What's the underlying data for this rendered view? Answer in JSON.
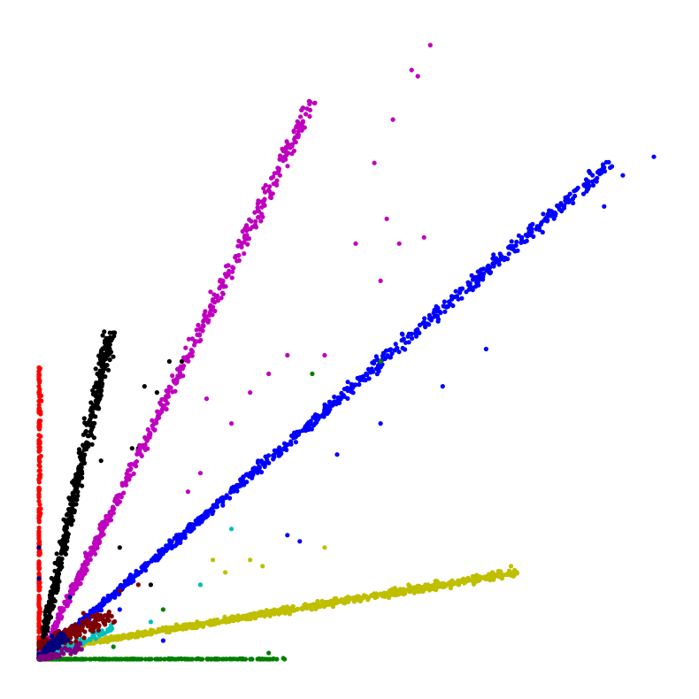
{
  "chart_data": {
    "type": "scatter",
    "title": "",
    "xlabel": "",
    "ylabel": "",
    "axes_visible": false,
    "grid": false,
    "legend": "none",
    "xlim": [
      0,
      1
    ],
    "ylim": [
      0,
      1
    ],
    "series": [
      {
        "color": "#ff0000",
        "trend": [
          [
            0.0,
            0.0
          ],
          [
            0.0,
            0.47
          ]
        ],
        "scatter": 0.004,
        "count": 220,
        "outliers": [
          [
            0.0,
            0.47
          ],
          [
            0.0,
            0.44
          ],
          [
            0.0,
            0.43
          ],
          [
            0.02,
            0.09
          ],
          [
            0.03,
            0.14
          ]
        ]
      },
      {
        "color": "#000000",
        "trend": [
          [
            0.0,
            0.0
          ],
          [
            0.115,
            0.53
          ]
        ],
        "scatter": 0.012,
        "count": 520,
        "outliers": [
          [
            0.23,
            0.48
          ],
          [
            0.21,
            0.48
          ],
          [
            0.17,
            0.44
          ],
          [
            0.19,
            0.43
          ],
          [
            0.15,
            0.34
          ],
          [
            0.13,
            0.18
          ],
          [
            0.18,
            0.12
          ],
          [
            0.16,
            0.34
          ],
          [
            0.1,
            0.32
          ]
        ]
      },
      {
        "color": "#bf00bf",
        "trend": [
          [
            0.0,
            0.0
          ],
          [
            0.44,
            0.9
          ]
        ],
        "scatter": 0.012,
        "count": 620,
        "outliers": [
          [
            0.63,
            0.99
          ],
          [
            0.6,
            0.95
          ],
          [
            0.61,
            0.94
          ],
          [
            0.57,
            0.87
          ],
          [
            0.54,
            0.8
          ],
          [
            0.56,
            0.71
          ],
          [
            0.62,
            0.68
          ],
          [
            0.51,
            0.67
          ],
          [
            0.55,
            0.61
          ],
          [
            0.46,
            0.49
          ],
          [
            0.37,
            0.46
          ],
          [
            0.34,
            0.43
          ],
          [
            0.31,
            0.38
          ],
          [
            0.26,
            0.3
          ],
          [
            0.24,
            0.27
          ],
          [
            0.27,
            0.42
          ],
          [
            0.4,
            0.49
          ],
          [
            0.58,
            0.67
          ]
        ]
      },
      {
        "color": "#0000ff",
        "trend": [
          [
            0.0,
            0.0
          ],
          [
            0.92,
            0.8
          ]
        ],
        "scatter": 0.012,
        "count": 920,
        "outliers": [
          [
            0.99,
            0.81
          ],
          [
            0.94,
            0.78
          ],
          [
            0.91,
            0.73
          ],
          [
            0.72,
            0.5
          ],
          [
            0.65,
            0.44
          ],
          [
            0.55,
            0.38
          ],
          [
            0.48,
            0.33
          ],
          [
            0.4,
            0.2
          ],
          [
            0.42,
            0.19
          ],
          [
            0.13,
            0.08
          ],
          [
            0.2,
            0.03
          ]
        ]
      },
      {
        "color": "#bfbf00",
        "trend": [
          [
            0.04,
            0.02
          ],
          [
            0.77,
            0.14
          ]
        ],
        "scatter": 0.008,
        "count": 900,
        "outliers": [
          [
            0.76,
            0.15
          ],
          [
            0.73,
            0.14
          ],
          [
            0.46,
            0.18
          ],
          [
            0.34,
            0.16
          ],
          [
            0.36,
            0.15
          ],
          [
            0.28,
            0.16
          ],
          [
            0.26,
            0.12
          ],
          [
            0.3,
            0.14
          ]
        ]
      },
      {
        "color": "#007f00",
        "trend": [
          [
            0.0,
            0.0
          ],
          [
            0.4,
            0.0
          ]
        ],
        "scatter": 0.0015,
        "count": 260,
        "outliers": [
          [
            0.44,
            0.46
          ],
          [
            0.55,
            0.48
          ],
          [
            0.37,
            0.01
          ],
          [
            0.12,
            0.02
          ],
          [
            0.2,
            0.08
          ]
        ]
      },
      {
        "color": "#00bfbf",
        "trend": [
          [
            0.01,
            0.005
          ],
          [
            0.12,
            0.05
          ]
        ],
        "scatter": 0.01,
        "count": 90,
        "outliers": [
          [
            0.31,
            0.21
          ],
          [
            0.26,
            0.12
          ],
          [
            0.18,
            0.06
          ]
        ]
      },
      {
        "color": "#7f0000",
        "trend": [
          [
            0.0,
            0.02
          ],
          [
            0.12,
            0.07
          ]
        ],
        "scatter": 0.02,
        "count": 170,
        "outliers": [
          [
            0.13,
            0.11
          ],
          [
            0.16,
            0.12
          ]
        ]
      },
      {
        "color": "#00007f",
        "trend": [
          [
            0.0,
            0.0
          ],
          [
            0.04,
            0.04
          ]
        ],
        "scatter": 0.015,
        "count": 90,
        "outliers": [
          [
            0.05,
            0.1
          ],
          [
            0.0,
            0.18
          ],
          [
            0.0,
            0.13
          ]
        ]
      },
      {
        "color": "#7f007f",
        "trend": [
          [
            0.0,
            0.0
          ],
          [
            0.07,
            0.02
          ]
        ],
        "scatter": 0.01,
        "count": 70,
        "outliers": []
      }
    ]
  }
}
